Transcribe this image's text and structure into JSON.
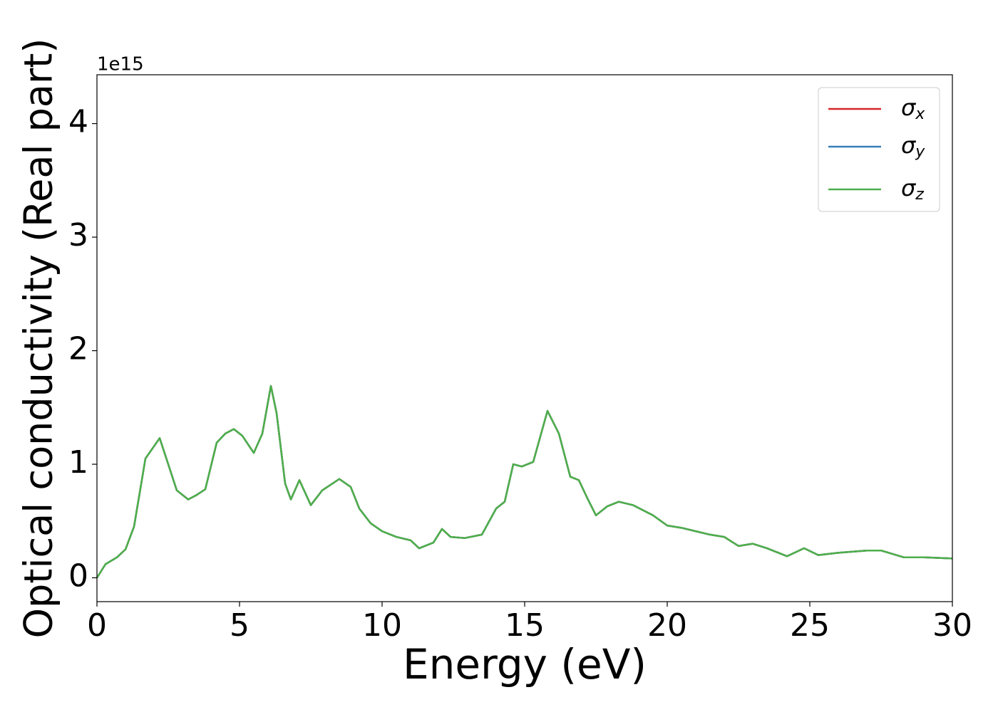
{
  "chart_data": {
    "type": "line",
    "xlabel": "Energy (eV)",
    "ylabel": "Optical conductivity (Real part)",
    "offset_label": "1e15",
    "x": [
      0,
      0.3,
      0.7,
      1.0,
      1.3,
      1.7,
      2.2,
      2.5,
      2.8,
      3.2,
      3.5,
      3.8,
      4.2,
      4.5,
      4.8,
      5.1,
      5.5,
      5.8,
      6.1,
      6.3,
      6.6,
      6.8,
      7.1,
      7.5,
      7.9,
      8.5,
      8.9,
      9.2,
      9.6,
      10.0,
      10.5,
      11.0,
      11.3,
      11.8,
      12.1,
      12.4,
      12.9,
      13.5,
      14.0,
      14.3,
      14.6,
      14.9,
      15.3,
      15.8,
      16.2,
      16.6,
      16.9,
      17.2,
      17.5,
      17.9,
      18.3,
      18.8,
      19.5,
      20.0,
      20.5,
      21.0,
      21.5,
      22.0,
      22.5,
      23.0,
      23.5,
      24.2,
      24.8,
      25.3,
      26.0,
      27.0,
      27.5,
      28.3,
      29.0,
      30.0
    ],
    "series": [
      {
        "name": "σx",
        "color": "#d62728",
        "values": [
          0,
          0.12,
          0.18,
          0.25,
          0.45,
          1.05,
          1.23,
          1.0,
          0.77,
          0.69,
          0.73,
          0.78,
          1.19,
          1.27,
          1.31,
          1.25,
          1.1,
          1.27,
          1.69,
          1.45,
          0.83,
          0.69,
          0.86,
          0.64,
          0.77,
          0.87,
          0.8,
          0.61,
          0.48,
          0.41,
          0.36,
          0.33,
          0.26,
          0.31,
          0.43,
          0.36,
          0.35,
          0.38,
          0.61,
          0.67,
          1.0,
          0.98,
          1.02,
          1.47,
          1.27,
          0.89,
          0.86,
          0.7,
          0.55,
          0.63,
          0.67,
          0.64,
          0.55,
          0.46,
          0.44,
          0.41,
          0.38,
          0.36,
          0.28,
          0.3,
          0.26,
          0.19,
          0.26,
          0.2,
          0.22,
          0.24,
          0.24,
          0.18,
          0.18,
          0.17
        ]
      },
      {
        "name": "σy",
        "color": "#377eb8",
        "values": [
          0,
          0.12,
          0.18,
          0.25,
          0.45,
          1.05,
          1.23,
          1.0,
          0.77,
          0.69,
          0.73,
          0.78,
          1.19,
          1.27,
          1.31,
          1.25,
          1.1,
          1.27,
          1.69,
          1.45,
          0.83,
          0.69,
          0.86,
          0.64,
          0.77,
          0.87,
          0.8,
          0.61,
          0.48,
          0.41,
          0.36,
          0.33,
          0.26,
          0.31,
          0.43,
          0.36,
          0.35,
          0.38,
          0.61,
          0.67,
          1.0,
          0.98,
          1.02,
          1.47,
          1.27,
          0.89,
          0.86,
          0.7,
          0.55,
          0.63,
          0.67,
          0.64,
          0.55,
          0.46,
          0.44,
          0.41,
          0.38,
          0.36,
          0.28,
          0.3,
          0.26,
          0.19,
          0.26,
          0.2,
          0.22,
          0.24,
          0.24,
          0.18,
          0.18,
          0.17
        ]
      },
      {
        "name": "σz",
        "color": "#4daf4a",
        "values": [
          0,
          0.12,
          0.18,
          0.25,
          0.45,
          1.05,
          1.23,
          1.0,
          0.77,
          0.69,
          0.73,
          0.78,
          1.19,
          1.27,
          1.31,
          1.25,
          1.1,
          1.27,
          1.69,
          1.45,
          0.83,
          0.69,
          0.86,
          0.64,
          0.77,
          0.87,
          0.8,
          0.61,
          0.48,
          0.41,
          0.36,
          0.33,
          0.26,
          0.31,
          0.43,
          0.36,
          0.35,
          0.38,
          0.61,
          0.67,
          1.0,
          0.98,
          1.02,
          1.47,
          1.27,
          0.89,
          0.86,
          0.7,
          0.55,
          0.63,
          0.67,
          0.64,
          0.55,
          0.46,
          0.44,
          0.41,
          0.38,
          0.36,
          0.28,
          0.3,
          0.26,
          0.19,
          0.26,
          0.2,
          0.22,
          0.24,
          0.24,
          0.18,
          0.18,
          0.17
        ]
      }
    ],
    "xlim": [
      0,
      30
    ],
    "xticks": [
      0,
      5,
      10,
      15,
      20,
      25,
      30
    ],
    "ylim": [
      -0.21,
      4.43
    ],
    "yticks": [
      0,
      1,
      2,
      3,
      4
    ],
    "grid": false,
    "legend": "upper right"
  }
}
